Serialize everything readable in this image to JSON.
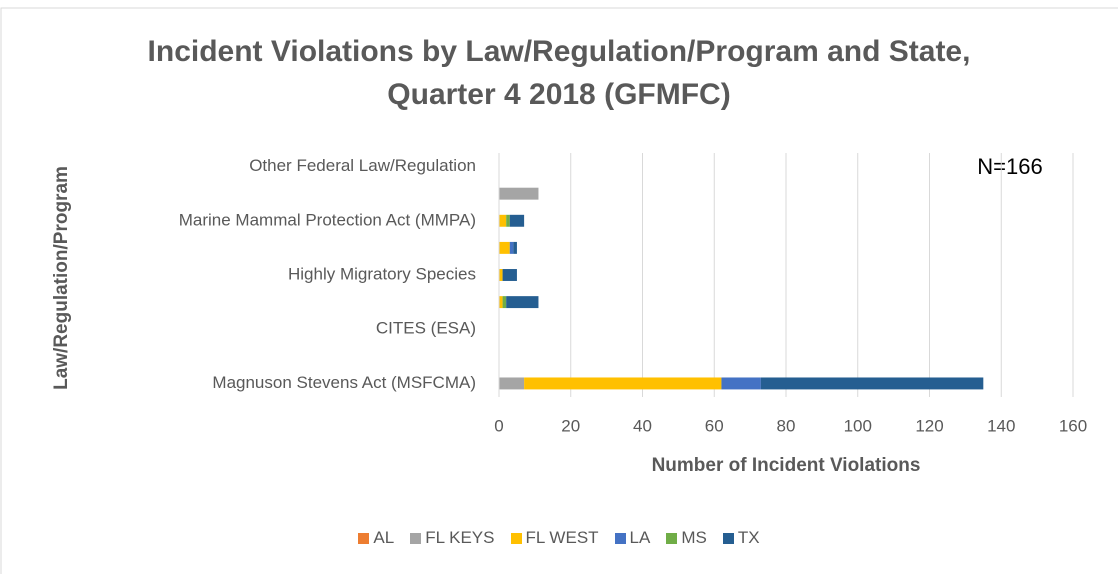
{
  "chart_data": {
    "type": "stacked-bar-horizontal",
    "title": "Incident Violations by Law/Regulation/Program and State, Quarter 4 2018 (GFMFC)",
    "x_label": "Number of Incident Violations",
    "y_label": "Law/Regulation/Program",
    "annotation": "N=166",
    "categories": [
      "Magnuson Stevens Act (MSFCMA)",
      null,
      "CITES (ESA)",
      null,
      "Highly Migratory Species",
      null,
      "Marine Mammal Protection Act (MMPA)",
      null,
      "Other Federal Law/Regulation"
    ],
    "series": [
      {
        "name": "AL",
        "color": "#ed7d31",
        "values": [
          0,
          0,
          0,
          0,
          0,
          0,
          0,
          0,
          0
        ]
      },
      {
        "name": "FL KEYS",
        "color": "#a5a5a5",
        "values": [
          7,
          0,
          0,
          0,
          0,
          0,
          0,
          11,
          0
        ]
      },
      {
        "name": "FL WEST",
        "color": "#ffc000",
        "values": [
          55,
          0,
          0,
          1,
          1,
          3,
          2,
          0,
          0
        ]
      },
      {
        "name": "LA",
        "color": "#4472c4",
        "values": [
          11,
          0,
          0,
          0,
          0,
          1,
          0,
          0,
          0
        ]
      },
      {
        "name": "MS",
        "color": "#70ad47",
        "values": [
          0,
          0,
          0,
          1,
          0,
          0,
          1,
          0,
          0
        ]
      },
      {
        "name": "TX",
        "color": "#255e91",
        "values": [
          62,
          0,
          0,
          9,
          4,
          1,
          4,
          0,
          0
        ]
      }
    ],
    "xlim": [
      0,
      160
    ],
    "xticks": [
      0,
      20,
      40,
      60,
      80,
      100,
      120,
      140,
      160
    ],
    "grid": true,
    "legend": "bottom"
  }
}
